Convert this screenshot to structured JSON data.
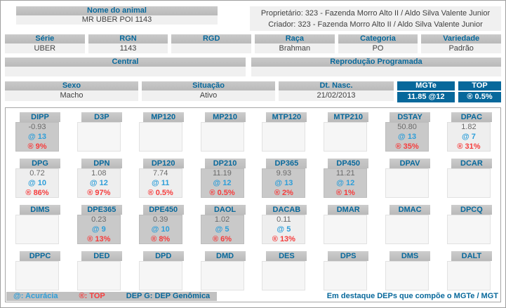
{
  "colors": {
    "accent_blue": "#07689b",
    "light_blue": "#2d9ed9",
    "red": "#f63c3c",
    "header_gray": "#c1c1c1",
    "value_bg": "#f0f0f0",
    "highlight_bg": "#c9c9c9"
  },
  "header": {
    "nome_label": "Nome do animal",
    "nome_value": "MR UBER POI 1143",
    "proprietario": "Proprietário: 323 - Fazenda Morro Alto II / Aldo Silva Valente Junior",
    "criador": "Criador: 323 - Fazenda Morro Alto II / Aldo Silva Valente Junior"
  },
  "identification": {
    "fields": [
      {
        "key": "serie",
        "label": "Série",
        "value": "UBER"
      },
      {
        "key": "rgn",
        "label": "RGN",
        "value": "1143"
      },
      {
        "key": "rgd",
        "label": "RGD",
        "value": ""
      },
      {
        "key": "raca",
        "label": "Raça",
        "value": "Brahman"
      },
      {
        "key": "categoria",
        "label": "Categoria",
        "value": "PO"
      },
      {
        "key": "variedade",
        "label": "Variedade",
        "value": "Padrão"
      }
    ],
    "central": {
      "label": "Central",
      "value": ""
    },
    "reproducao": {
      "label": "Reprodução Programada",
      "value": ""
    },
    "sexo": {
      "label": "Sexo",
      "value": "Macho"
    },
    "situacao": {
      "label": "Situação",
      "value": "Ativo"
    },
    "dt_nasc": {
      "label": "Dt. Nasc.",
      "value": "21/02/2013"
    },
    "mgte": {
      "label": "MGTe",
      "value": "11.85 @12"
    },
    "top_badge": {
      "label": "TOP",
      "value": "® 0.5%"
    }
  },
  "dep_grid": {
    "rows": [
      [
        {
          "name": "DIPP",
          "value": "-0.93",
          "accuracy": "@ 13",
          "top": "® 9%",
          "highlighted": true
        },
        {
          "name": "D3P"
        },
        {
          "name": "MP120"
        },
        {
          "name": "MP210"
        },
        {
          "name": "MTP120"
        },
        {
          "name": "MTP210"
        },
        {
          "name": "DSTAY",
          "value": "50.80",
          "accuracy": "@ 13",
          "top": "® 35%",
          "highlighted": true
        },
        {
          "name": "DPAC",
          "value": "1.82",
          "accuracy": "@ 7",
          "top": "® 31%",
          "highlighted": false
        }
      ],
      [
        {
          "name": "DPG",
          "value": "0.72",
          "accuracy": "@ 10",
          "top": "® 86%",
          "highlighted": false
        },
        {
          "name": "DPN",
          "value": "1.08",
          "accuracy": "@ 12",
          "top": "® 97%",
          "highlighted": false
        },
        {
          "name": "DP120",
          "value": "7.74",
          "accuracy": "@ 11",
          "top": "® 0.5%",
          "highlighted": false
        },
        {
          "name": "DP210",
          "value": "11.19",
          "accuracy": "@ 12",
          "top": "® 0.5%",
          "highlighted": true
        },
        {
          "name": "DP365",
          "value": "9.93",
          "accuracy": "@ 13",
          "top": "® 2%",
          "highlighted": true
        },
        {
          "name": "DP450",
          "value": "11.21",
          "accuracy": "@ 12",
          "top": "® 1%",
          "highlighted": true
        },
        {
          "name": "DPAV"
        },
        {
          "name": "DCAR"
        }
      ],
      [
        {
          "name": "DIMS"
        },
        {
          "name": "DPE365",
          "value": "0.23",
          "accuracy": "@ 9",
          "top": "® 13%",
          "highlighted": true
        },
        {
          "name": "DPE450",
          "value": "0.39",
          "accuracy": "@ 10",
          "top": "® 8%",
          "highlighted": true
        },
        {
          "name": "DAOL",
          "value": "1.02",
          "accuracy": "@ 5",
          "top": "® 6%",
          "highlighted": true
        },
        {
          "name": "DACAB",
          "value": "0.11",
          "accuracy": "@ 5",
          "top": "® 13%",
          "highlighted": false
        },
        {
          "name": "DMAR"
        },
        {
          "name": "DMAC"
        },
        {
          "name": "DPCQ"
        }
      ],
      [
        {
          "name": "DPPC"
        },
        {
          "name": "DED"
        },
        {
          "name": "DPD"
        },
        {
          "name": "DMD"
        },
        {
          "name": "DES"
        },
        {
          "name": "DPS"
        },
        {
          "name": "DMS"
        },
        {
          "name": "DALT"
        }
      ]
    ]
  },
  "legend": {
    "acuracia_label": "@: Acurácia",
    "top_label": "®: TOP",
    "genomica_label": "DEP G: DEP Genômica",
    "highlight_note": "Em destaque DEPs que compõe o MGTe / MGT"
  }
}
